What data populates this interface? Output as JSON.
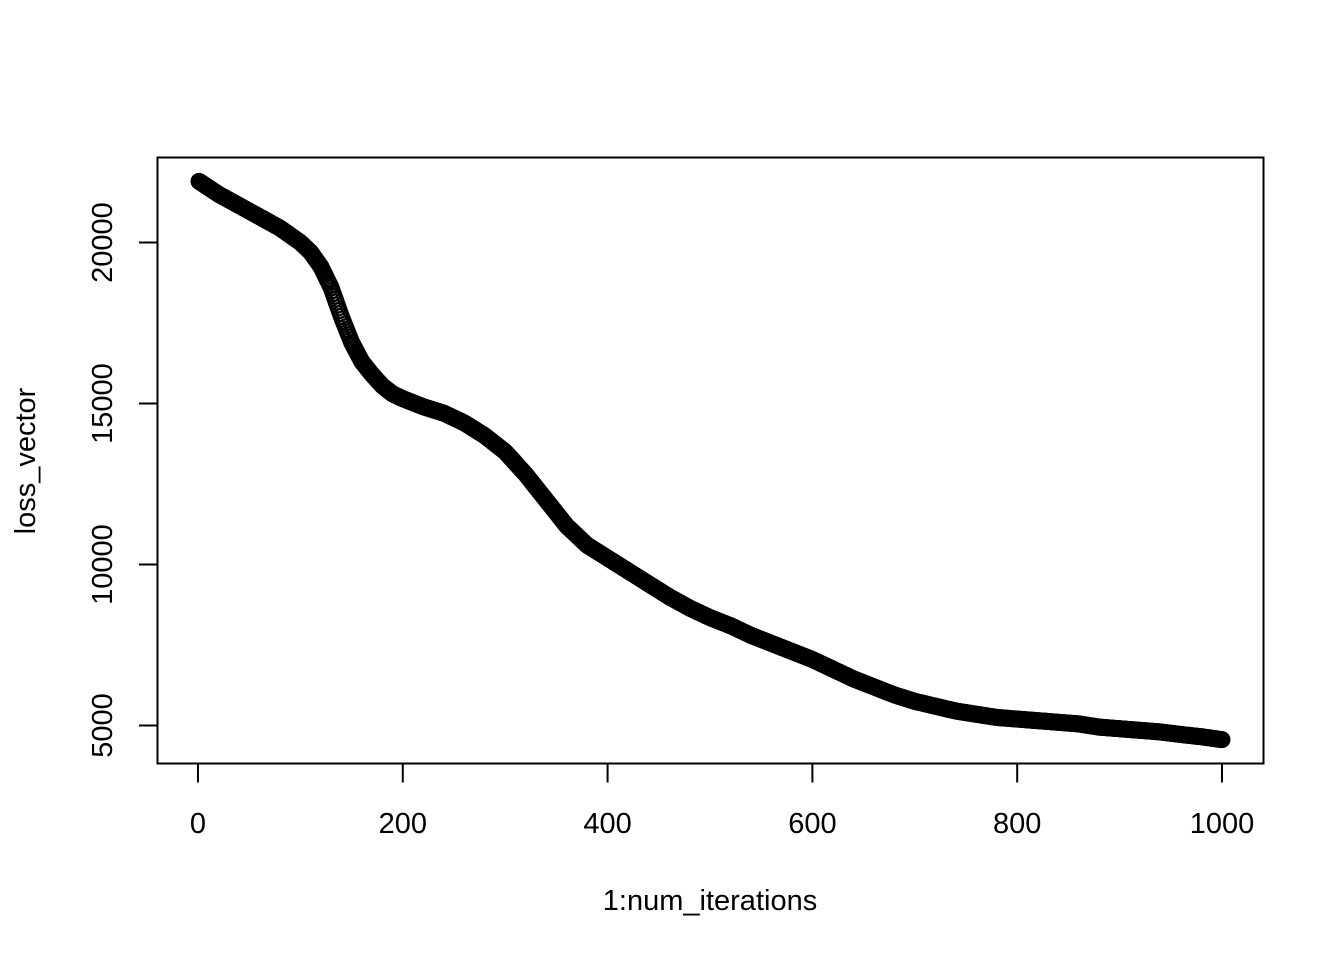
{
  "chart_data": {
    "type": "scatter",
    "title": "",
    "xlabel": "1:num_iterations",
    "ylabel": "loss_vector",
    "xlim": [
      1,
      1000
    ],
    "ylim": [
      4500,
      22000
    ],
    "x_ticks": [
      0,
      200,
      400,
      600,
      800,
      1000
    ],
    "x_tick_labels": [
      "0",
      "200",
      "400",
      "600",
      "800",
      "1000"
    ],
    "y_ticks": [
      5000,
      10000,
      15000,
      20000
    ],
    "y_tick_labels": [
      "5000",
      "10000",
      "15000",
      "20000"
    ],
    "grid": false,
    "legend": "none",
    "marker": "open-circle",
    "point_count": 1000,
    "colors": {
      "points": "#000000",
      "axes": "#000000",
      "background": "#ffffff"
    },
    "series": [
      {
        "x": [
          1,
          20,
          40,
          60,
          80,
          100,
          110,
          120,
          130,
          140,
          150,
          160,
          170,
          180,
          190,
          200,
          220,
          240,
          260,
          280,
          300,
          320,
          340,
          360,
          380,
          400,
          420,
          440,
          460,
          480,
          500,
          520,
          540,
          560,
          580,
          600,
          620,
          640,
          660,
          680,
          700,
          720,
          740,
          760,
          780,
          800,
          820,
          840,
          860,
          880,
          900,
          920,
          940,
          960,
          980,
          1000
        ],
        "y": [
          21900,
          21500,
          21150,
          20800,
          20450,
          20000,
          19700,
          19250,
          18600,
          17700,
          16900,
          16300,
          15900,
          15550,
          15300,
          15150,
          14900,
          14700,
          14400,
          14000,
          13500,
          12800,
          12000,
          11200,
          10600,
          10200,
          9800,
          9400,
          9000,
          8650,
          8350,
          8100,
          7800,
          7550,
          7300,
          7050,
          6750,
          6450,
          6200,
          5950,
          5750,
          5600,
          5450,
          5350,
          5250,
          5200,
          5150,
          5100,
          5050,
          4950,
          4900,
          4850,
          4800,
          4720,
          4650,
          4560
        ]
      }
    ]
  }
}
